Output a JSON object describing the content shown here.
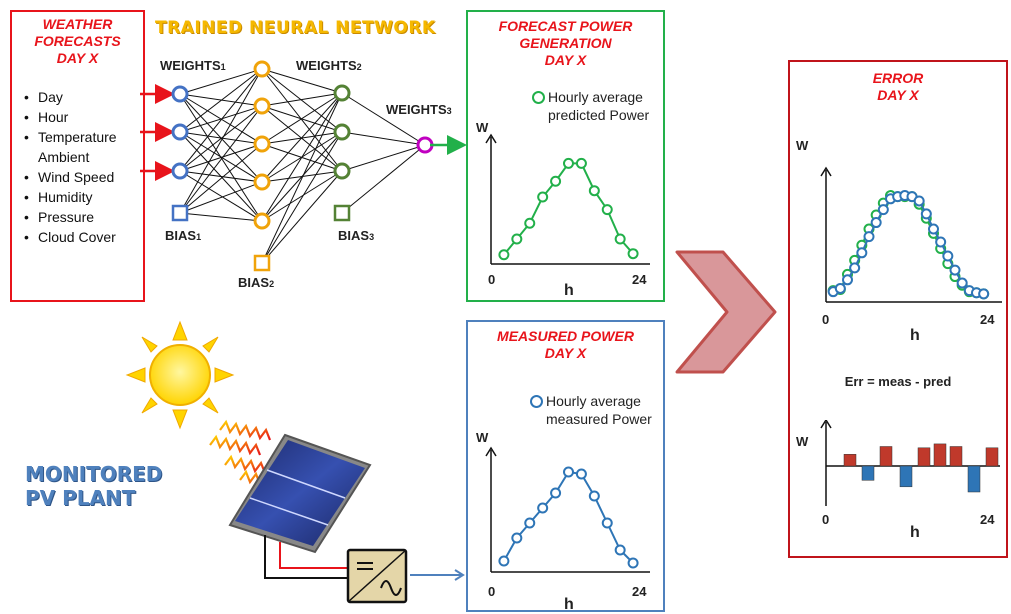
{
  "weather": {
    "title_lines": [
      "WEATHER",
      "FORECASTS",
      "DAY X"
    ],
    "items": [
      "Day",
      "Hour",
      "Temperature Ambient",
      "Wind Speed",
      "Humidity",
      "Pressure",
      "Cloud Cover"
    ],
    "border_color": "#e8141b"
  },
  "network": {
    "title": "TRAINED NEURAL NETWORK",
    "weights1": "WEIGHTS",
    "weights1_sub": "1",
    "weights2": "WEIGHTS",
    "weights2_sub": "2",
    "weights3": "WEIGHTS",
    "weights3_sub": "3",
    "bias1": "BIAS",
    "bias1_sub": "1",
    "bias2": "BIAS",
    "bias2_sub": "2",
    "bias3": "BIAS",
    "bias3_sub": "3",
    "colors": {
      "input": "#4472c4",
      "hidden1": "#f0a30a",
      "hidden2": "#548235",
      "output": "#c000c0"
    }
  },
  "forecast": {
    "title_lines": [
      "FORECAST POWER",
      "GENERATION",
      "DAY X"
    ],
    "legend_lines": [
      "Hourly average",
      "predicted Power"
    ],
    "y_label": "W",
    "x_label": "h",
    "x_min_label": "0",
    "x_max_label": "24",
    "border_color": "#22b04a",
    "series_color": "#22b04a"
  },
  "measured": {
    "title_lines": [
      "MEASURED POWER",
      "DAY X"
    ],
    "legend_lines": [
      "Hourly average",
      "measured Power"
    ],
    "y_label": "W",
    "x_label": "h",
    "x_min_label": "0",
    "x_max_label": "24",
    "border_color": "#4f81bd",
    "series_color": "#2e75b6"
  },
  "pv": {
    "title_lines": [
      "MONITORED",
      "PV PLANT"
    ]
  },
  "error": {
    "title_lines": [
      "ERROR",
      "DAY X"
    ],
    "y_label": "W",
    "x_label": "h",
    "x_min_label": "0",
    "x_max_label": "24",
    "equation": "Err = meas - pred",
    "err_y_label": "W",
    "err_x_label": "h",
    "err_x_min_label": "0",
    "err_x_max_label": "24",
    "border_color": "#c0141b"
  },
  "chart_data": [
    {
      "type": "line",
      "x": [
        2,
        4,
        6,
        8,
        10,
        12,
        14,
        16,
        18,
        20,
        22
      ],
      "series": [
        {
          "name": "Hourly average predicted Power",
          "values": [
            0.05,
            0.2,
            0.35,
            0.6,
            0.75,
            0.92,
            0.92,
            0.66,
            0.48,
            0.2,
            0.06
          ]
        }
      ],
      "xlabel": "h",
      "ylabel": "W",
      "xlim": [
        0,
        24
      ],
      "ylim": [
        0,
        1
      ]
    },
    {
      "type": "line",
      "x": [
        2,
        4,
        6,
        8,
        10,
        12,
        14,
        16,
        18,
        20,
        22
      ],
      "series": [
        {
          "name": "Hourly average measured Power",
          "values": [
            0.07,
            0.3,
            0.45,
            0.6,
            0.75,
            0.96,
            0.94,
            0.72,
            0.45,
            0.18,
            0.05
          ]
        }
      ],
      "xlabel": "h",
      "ylabel": "W",
      "xlim": [
        0,
        24
      ],
      "ylim": [
        0,
        1
      ]
    },
    {
      "type": "line",
      "x": [
        1,
        2,
        3,
        4,
        5,
        6,
        7,
        8,
        9,
        10,
        11,
        12,
        13,
        14,
        15,
        16,
        17,
        18,
        19,
        20,
        21,
        22
      ],
      "series": [
        {
          "name": "predicted",
          "values": [
            0.05,
            0.06,
            0.2,
            0.33,
            0.47,
            0.62,
            0.75,
            0.86,
            0.93,
            0.92,
            0.92,
            0.92,
            0.85,
            0.72,
            0.58,
            0.44,
            0.3,
            0.18,
            0.1,
            0.04,
            0.03,
            0.02
          ]
        },
        {
          "name": "measured",
          "values": [
            0.04,
            0.07,
            0.15,
            0.26,
            0.4,
            0.55,
            0.68,
            0.8,
            0.9,
            0.92,
            0.93,
            0.92,
            0.88,
            0.76,
            0.62,
            0.5,
            0.37,
            0.24,
            0.12,
            0.05,
            0.03,
            0.02
          ]
        }
      ],
      "xlabel": "h",
      "ylabel": "W",
      "xlim": [
        0,
        24
      ],
      "ylim": [
        0,
        1
      ]
    },
    {
      "type": "bar",
      "categories": [
        1,
        2,
        3,
        4,
        5,
        6,
        7,
        8,
        9,
        10
      ],
      "values": [
        0.45,
        -0.55,
        0.75,
        -0.8,
        0.7,
        0.85,
        0.75,
        -1.0,
        0.7,
        0
      ],
      "xlabel": "h",
      "ylabel": "W",
      "xlim": [
        0,
        24
      ],
      "colors": {
        "positive": "#c0392b",
        "negative": "#2e75b6"
      }
    }
  ]
}
